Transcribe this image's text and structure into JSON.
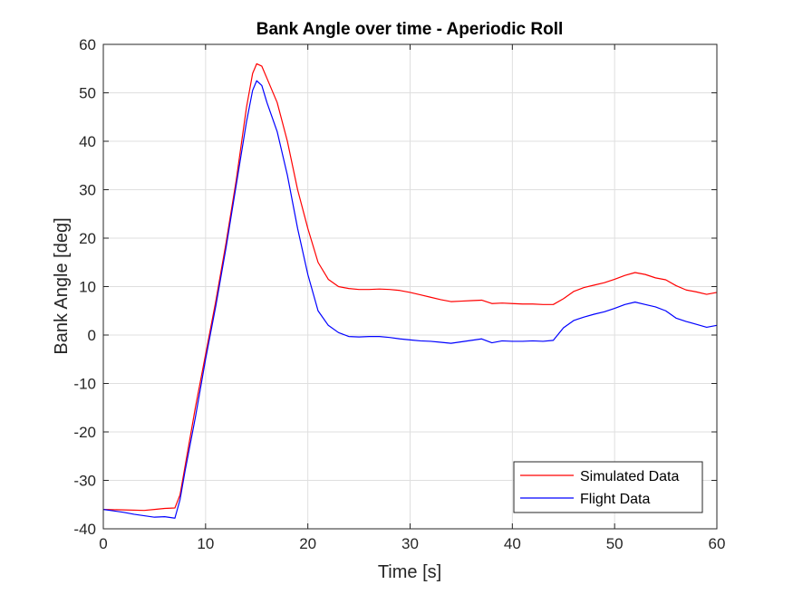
{
  "chart_data": {
    "type": "line",
    "title": "Bank Angle over time - Aperiodic Roll",
    "xlabel": "Time [s]",
    "ylabel": "Bank Angle [deg]",
    "xlim": [
      0,
      60
    ],
    "ylim": [
      -40,
      60
    ],
    "xticks": [
      0,
      10,
      20,
      30,
      40,
      50,
      60
    ],
    "yticks": [
      -40,
      -30,
      -20,
      -10,
      0,
      10,
      20,
      30,
      40,
      50,
      60
    ],
    "grid": true,
    "legend_position": "bottom-right",
    "series": [
      {
        "name": "Simulated Data",
        "color": "#ff0000",
        "points": [
          [
            0,
            -36
          ],
          [
            2,
            -36.1
          ],
          [
            4,
            -36.2
          ],
          [
            5,
            -36
          ],
          [
            6,
            -35.8
          ],
          [
            7,
            -35.7
          ],
          [
            7.5,
            -33
          ],
          [
            8,
            -27
          ],
          [
            9,
            -15
          ],
          [
            10,
            -4
          ],
          [
            11,
            7
          ],
          [
            12,
            19
          ],
          [
            13,
            32
          ],
          [
            14,
            47
          ],
          [
            14.6,
            54
          ],
          [
            15,
            56
          ],
          [
            15.5,
            55.5
          ],
          [
            16,
            53
          ],
          [
            17,
            48
          ],
          [
            18,
            40
          ],
          [
            19,
            30
          ],
          [
            20,
            22
          ],
          [
            21,
            15
          ],
          [
            22,
            11.5
          ],
          [
            23,
            10
          ],
          [
            24,
            9.6
          ],
          [
            25,
            9.4
          ],
          [
            26,
            9.4
          ],
          [
            27,
            9.5
          ],
          [
            28,
            9.4
          ],
          [
            29,
            9.2
          ],
          [
            30,
            8.8
          ],
          [
            31,
            8.3
          ],
          [
            32,
            7.8
          ],
          [
            33,
            7.3
          ],
          [
            34,
            6.9
          ],
          [
            35,
            7
          ],
          [
            36,
            7.1
          ],
          [
            37,
            7.2
          ],
          [
            38,
            6.5
          ],
          [
            39,
            6.6
          ],
          [
            40,
            6.5
          ],
          [
            41,
            6.4
          ],
          [
            42,
            6.4
          ],
          [
            43,
            6.3
          ],
          [
            44,
            6.3
          ],
          [
            45,
            7.5
          ],
          [
            46,
            9
          ],
          [
            47,
            9.8
          ],
          [
            48,
            10.3
          ],
          [
            49,
            10.8
          ],
          [
            50,
            11.5
          ],
          [
            51,
            12.3
          ],
          [
            52,
            12.9
          ],
          [
            53,
            12.5
          ],
          [
            54,
            11.8
          ],
          [
            55,
            11.4
          ],
          [
            56,
            10.2
          ],
          [
            57,
            9.3
          ],
          [
            58,
            8.9
          ],
          [
            59,
            8.4
          ],
          [
            60,
            8.8
          ]
        ]
      },
      {
        "name": "Flight Data",
        "color": "#0000ff",
        "points": [
          [
            0,
            -36
          ],
          [
            1,
            -36.3
          ],
          [
            2,
            -36.6
          ],
          [
            3,
            -37
          ],
          [
            4,
            -37.3
          ],
          [
            5,
            -37.6
          ],
          [
            6,
            -37.5
          ],
          [
            7,
            -37.8
          ],
          [
            7.5,
            -34
          ],
          [
            8,
            -28
          ],
          [
            9,
            -17
          ],
          [
            10,
            -5
          ],
          [
            11,
            6
          ],
          [
            12,
            18
          ],
          [
            13,
            31
          ],
          [
            14,
            44
          ],
          [
            14.6,
            50.5
          ],
          [
            15,
            52.5
          ],
          [
            15.5,
            51.5
          ],
          [
            16,
            48
          ],
          [
            17,
            42
          ],
          [
            18,
            33
          ],
          [
            19,
            22
          ],
          [
            20,
            12.5
          ],
          [
            21,
            5
          ],
          [
            22,
            2
          ],
          [
            23,
            0.5
          ],
          [
            24,
            -0.3
          ],
          [
            25,
            -0.4
          ],
          [
            26,
            -0.3
          ],
          [
            27,
            -0.3
          ],
          [
            28,
            -0.5
          ],
          [
            29,
            -0.8
          ],
          [
            30,
            -1
          ],
          [
            31,
            -1.2
          ],
          [
            32,
            -1.3
          ],
          [
            33,
            -1.5
          ],
          [
            34,
            -1.7
          ],
          [
            35,
            -1.4
          ],
          [
            36,
            -1.1
          ],
          [
            37,
            -0.8
          ],
          [
            38,
            -1.6
          ],
          [
            39,
            -1.2
          ],
          [
            40,
            -1.3
          ],
          [
            41,
            -1.3
          ],
          [
            42,
            -1.2
          ],
          [
            43,
            -1.3
          ],
          [
            44,
            -1.1
          ],
          [
            45,
            1.5
          ],
          [
            46,
            3
          ],
          [
            47,
            3.7
          ],
          [
            48,
            4.3
          ],
          [
            49,
            4.8
          ],
          [
            50,
            5.5
          ],
          [
            51,
            6.3
          ],
          [
            52,
            6.8
          ],
          [
            53,
            6.3
          ],
          [
            54,
            5.8
          ],
          [
            55,
            5
          ],
          [
            56,
            3.5
          ],
          [
            57,
            2.8
          ],
          [
            58,
            2.2
          ],
          [
            59,
            1.6
          ],
          [
            60,
            2
          ]
        ]
      }
    ]
  }
}
